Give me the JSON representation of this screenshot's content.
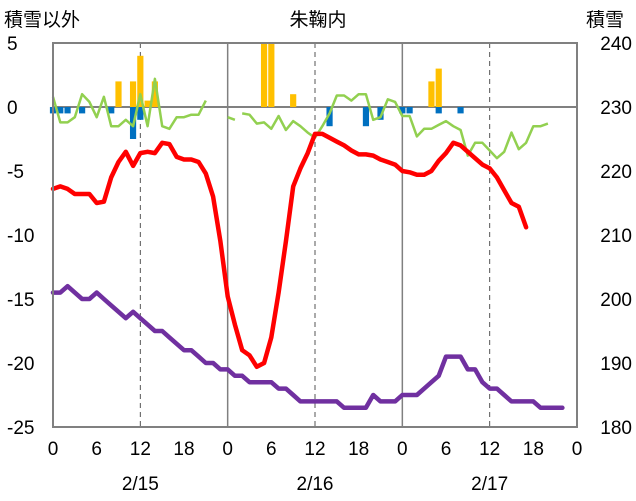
{
  "chart_data": {
    "type": "line",
    "title": "朱鞠内",
    "left_axis_label": "積雪以外",
    "right_axis_label": "積雪",
    "y_left_range": [
      -25,
      5
    ],
    "y_left_ticks": [
      "5",
      "0",
      "-5",
      "-10",
      "-15",
      "-20",
      "-25"
    ],
    "y_right_range": [
      180,
      240
    ],
    "y_right_ticks": [
      "240",
      "230",
      "220",
      "210",
      "200",
      "190",
      "180"
    ],
    "x_range_hours": [
      0,
      72
    ],
    "x_tick_labels": [
      "0",
      "6",
      "12",
      "18",
      "0",
      "6",
      "12",
      "18",
      "0",
      "6",
      "12",
      "18",
      "0"
    ],
    "date_labels": [
      "2/15",
      "2/16",
      "2/17"
    ],
    "grid": "vertical solid lines at day boundaries, dashed lines at 12h",
    "colors": {
      "temperature": "#ff0000",
      "snow_depth": "#7030a0",
      "wind": "#92d050",
      "precip": "#ffc000",
      "change": "#0070c0",
      "frame": "#808080"
    },
    "series": [
      {
        "axis": "left",
        "style": "thick",
        "color": "#ff0000",
        "points": [
          [
            0,
            -6.4
          ],
          [
            1,
            -6.2
          ],
          [
            2,
            -6.4
          ],
          [
            3,
            -6.8
          ],
          [
            4,
            -6.8
          ],
          [
            5,
            -6.8
          ],
          [
            6,
            -7.5
          ],
          [
            7,
            -7.4
          ],
          [
            8,
            -5.5
          ],
          [
            9,
            -4.3
          ],
          [
            10,
            -3.5
          ],
          [
            11,
            -4.6
          ],
          [
            12,
            -3.6
          ],
          [
            13,
            -3.5
          ],
          [
            14,
            -3.6
          ],
          [
            15,
            -2.8
          ],
          [
            16,
            -2.9
          ],
          [
            17,
            -3.9
          ],
          [
            18,
            -4.1
          ],
          [
            19,
            -4.1
          ],
          [
            20,
            -4.3
          ],
          [
            21,
            -5.2
          ],
          [
            22,
            -7.0
          ],
          [
            23,
            -10.5
          ],
          [
            24,
            -14.8
          ],
          [
            25,
            -17.0
          ],
          [
            26,
            -19.0
          ],
          [
            27,
            -19.4
          ],
          [
            28,
            -20.3
          ],
          [
            29,
            -20.0
          ],
          [
            30,
            -18.0
          ],
          [
            31,
            -14.5
          ],
          [
            32,
            -10.5
          ],
          [
            33,
            -6.2
          ],
          [
            34,
            -4.8
          ],
          [
            35,
            -3.6
          ],
          [
            36,
            -2.1
          ],
          [
            37,
            -2.1
          ],
          [
            38,
            -2.4
          ],
          [
            39,
            -2.7
          ],
          [
            40,
            -3.0
          ],
          [
            41,
            -3.4
          ],
          [
            42,
            -3.7
          ],
          [
            43,
            -3.7
          ],
          [
            44,
            -3.8
          ],
          [
            45,
            -4.1
          ],
          [
            46,
            -4.3
          ],
          [
            47,
            -4.5
          ],
          [
            48,
            -5.0
          ],
          [
            49,
            -5.1
          ],
          [
            50,
            -5.3
          ],
          [
            51,
            -5.3
          ],
          [
            52,
            -5.0
          ],
          [
            53,
            -4.2
          ],
          [
            54,
            -3.6
          ],
          [
            55,
            -2.8
          ],
          [
            56,
            -3.0
          ],
          [
            57,
            -3.5
          ],
          [
            58,
            -4.0
          ],
          [
            59,
            -4.5
          ],
          [
            60,
            -4.8
          ],
          [
            61,
            -5.5
          ],
          [
            62,
            -6.5
          ],
          [
            63,
            -7.5
          ],
          [
            64,
            -7.8
          ],
          [
            65,
            -9.4
          ]
        ]
      },
      {
        "axis": "right",
        "style": "thick",
        "color": "#7030a0",
        "points": [
          [
            0,
            201
          ],
          [
            1,
            201
          ],
          [
            2,
            202
          ],
          [
            3,
            201
          ],
          [
            4,
            200
          ],
          [
            5,
            200
          ],
          [
            6,
            201
          ],
          [
            7,
            200
          ],
          [
            8,
            199
          ],
          [
            9,
            198
          ],
          [
            10,
            197
          ],
          [
            11,
            198
          ],
          [
            12,
            197
          ],
          [
            13,
            196
          ],
          [
            14,
            195
          ],
          [
            15,
            195
          ],
          [
            16,
            194
          ],
          [
            17,
            193
          ],
          [
            18,
            192
          ],
          [
            19,
            192
          ],
          [
            20,
            191
          ],
          [
            21,
            190
          ],
          [
            22,
            190
          ],
          [
            23,
            189
          ],
          [
            24,
            189
          ],
          [
            25,
            188
          ],
          [
            26,
            188
          ],
          [
            27,
            187
          ],
          [
            28,
            187
          ],
          [
            29,
            187
          ],
          [
            30,
            187
          ],
          [
            31,
            186
          ],
          [
            32,
            186
          ],
          [
            33,
            185
          ],
          [
            34,
            184
          ],
          [
            35,
            184
          ],
          [
            36,
            184
          ],
          [
            37,
            184
          ],
          [
            38,
            184
          ],
          [
            39,
            184
          ],
          [
            40,
            183
          ],
          [
            41,
            183
          ],
          [
            42,
            183
          ],
          [
            43,
            183
          ],
          [
            44,
            185
          ],
          [
            45,
            184
          ],
          [
            46,
            184
          ],
          [
            47,
            184
          ],
          [
            48,
            185
          ],
          [
            49,
            185
          ],
          [
            50,
            185
          ],
          [
            51,
            186
          ],
          [
            52,
            187
          ],
          [
            53,
            188
          ],
          [
            54,
            191
          ],
          [
            55,
            191
          ],
          [
            56,
            191
          ],
          [
            57,
            189
          ],
          [
            58,
            189
          ],
          [
            59,
            187
          ],
          [
            60,
            186
          ],
          [
            61,
            186
          ],
          [
            62,
            185
          ],
          [
            63,
            184
          ],
          [
            64,
            184
          ],
          [
            65,
            184
          ],
          [
            66,
            184
          ],
          [
            67,
            183
          ],
          [
            68,
            183
          ],
          [
            69,
            183
          ],
          [
            70,
            183
          ]
        ]
      },
      {
        "axis": "left",
        "style": "thin",
        "color": "#92d050",
        "segments": [
          [
            [
              0,
              0.8
            ],
            [
              1,
              -1.2
            ],
            [
              2,
              -1.2
            ],
            [
              3,
              -0.8
            ],
            [
              4,
              1.0
            ],
            [
              5,
              0.4
            ],
            [
              6,
              -0.8
            ],
            [
              7,
              0.8
            ],
            [
              8,
              -1.5
            ],
            [
              9,
              -1.5
            ],
            [
              10,
              -1.0
            ],
            [
              11,
              -1.5
            ],
            [
              12,
              1.0
            ],
            [
              13,
              -1.5
            ],
            [
              14,
              2.2
            ],
            [
              15,
              -1.5
            ],
            [
              16,
              -1.7
            ],
            [
              17,
              -0.8
            ],
            [
              18,
              -0.8
            ],
            [
              19,
              -0.6
            ],
            [
              20,
              -0.6
            ],
            [
              21,
              0.5
            ]
          ],
          [
            [
              24,
              -0.8
            ],
            [
              25,
              -1.0
            ]
          ],
          [
            [
              26,
              -0.5
            ],
            [
              27,
              -0.6
            ],
            [
              28,
              -1.3
            ],
            [
              29,
              -1.2
            ],
            [
              30,
              -1.7
            ],
            [
              31,
              -0.7
            ],
            [
              32,
              -1.8
            ],
            [
              33,
              -1.1
            ],
            [
              34,
              -1.5
            ],
            [
              35,
              -2.0
            ],
            [
              36,
              -2.4
            ],
            [
              37,
              -1.5
            ],
            [
              38,
              -0.5
            ],
            [
              39,
              0.9
            ],
            [
              40,
              0.9
            ],
            [
              41,
              0.5
            ],
            [
              42,
              1.0
            ],
            [
              43,
              1.0
            ],
            [
              44,
              -1.0
            ],
            [
              45,
              -0.8
            ],
            [
              46,
              0.6
            ],
            [
              47,
              0.4
            ],
            [
              48,
              -0.7
            ],
            [
              49,
              -0.7
            ],
            [
              50,
              -2.3
            ],
            [
              51,
              -1.7
            ],
            [
              52,
              -1.7
            ],
            [
              53,
              -1.4
            ],
            [
              54,
              -1.1
            ],
            [
              55,
              -1.5
            ],
            [
              56,
              -1.8
            ],
            [
              57,
              -3.8
            ],
            [
              58,
              -2.8
            ],
            [
              59,
              -2.8
            ],
            [
              60,
              -3.4
            ],
            [
              61,
              -4.0
            ],
            [
              62,
              -3.5
            ],
            [
              63,
              -2.0
            ],
            [
              64,
              -3.3
            ],
            [
              65,
              -2.8
            ],
            [
              66,
              -1.5
            ],
            [
              67,
              -1.5
            ],
            [
              68,
              -1.3
            ]
          ]
        ]
      },
      {
        "axis": "left",
        "style": "bar",
        "color": "#ffc000",
        "bars": [
          [
            9,
            2.0
          ],
          [
            11,
            2.0
          ],
          [
            12,
            4.0
          ],
          [
            13,
            0.5
          ],
          [
            14,
            2.0
          ],
          [
            29,
            5.0
          ],
          [
            30,
            5.0
          ],
          [
            33,
            1.0
          ],
          [
            52,
            2.0
          ],
          [
            53,
            3.0
          ]
        ]
      },
      {
        "axis": "left",
        "style": "bar",
        "color": "#0070c0",
        "bars": [
          [
            0,
            -0.5
          ],
          [
            1,
            -0.5
          ],
          [
            2,
            -0.5
          ],
          [
            4,
            -0.5
          ],
          [
            8,
            -0.5
          ],
          [
            11,
            -2.5
          ],
          [
            12,
            -1.0
          ],
          [
            38,
            -1.5
          ],
          [
            43,
            -1.5
          ],
          [
            45,
            -1.0
          ],
          [
            48,
            -0.5
          ],
          [
            49,
            -0.5
          ],
          [
            53,
            -0.5
          ],
          [
            56,
            -0.5
          ]
        ]
      }
    ]
  }
}
